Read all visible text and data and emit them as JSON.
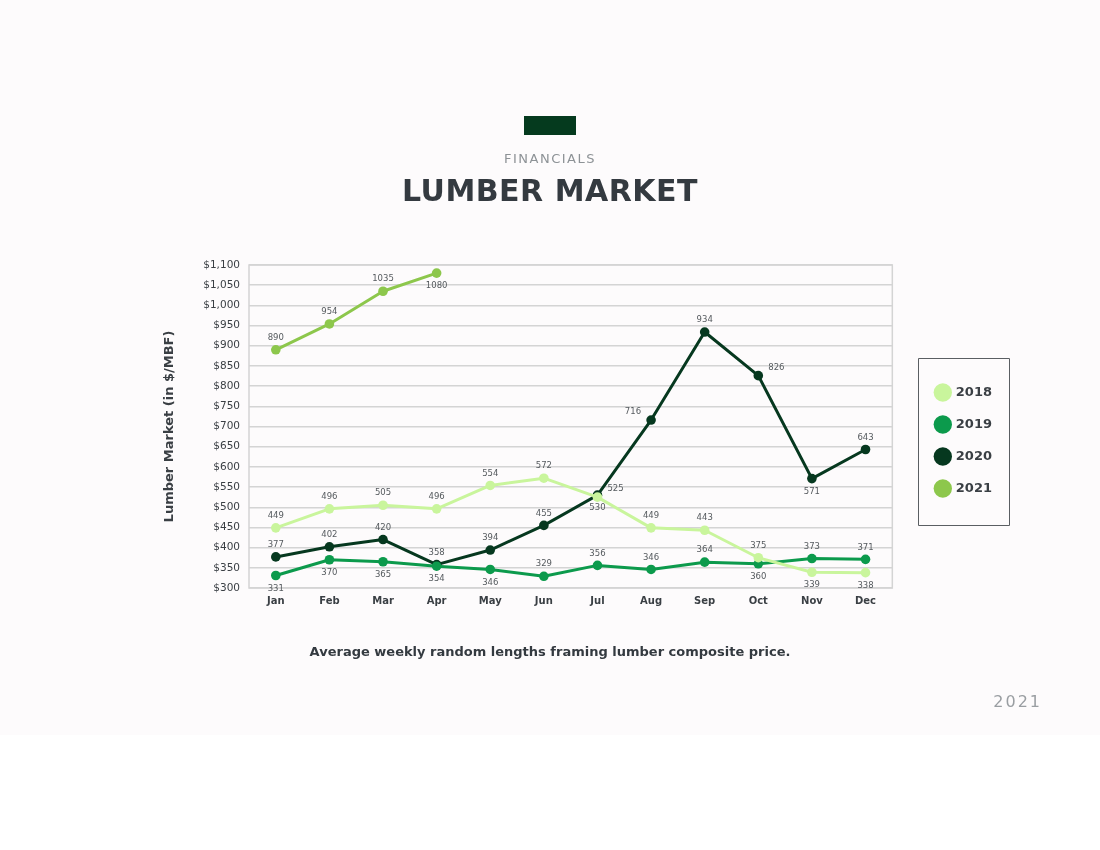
{
  "chart_data": {
    "type": "line",
    "title": "LUMBER MARKET",
    "subtitle": "FINANCIALS",
    "ylabel": "Lumber Market (in $/MBF)",
    "annotations": [
      "Average weekly random lengths framing lumber composite price.",
      "2021"
    ],
    "categories": [
      "Jan",
      "Feb",
      "Mar",
      "Apr",
      "May",
      "Jun",
      "Jul",
      "Aug",
      "Sep",
      "Oct",
      "Nov",
      "Dec"
    ],
    "series": [
      {
        "name": "2018",
        "color": "#c9f59c",
        "values": [
          449,
          496,
          505,
          496,
          554,
          572,
          525,
          449,
          443,
          375,
          339,
          338
        ]
      },
      {
        "name": "2019",
        "color": "#0c9a4c",
        "values": [
          331,
          370,
          365,
          354,
          346,
          329,
          356,
          346,
          364,
          360,
          373,
          371
        ]
      },
      {
        "name": "2020",
        "color": "#06381f",
        "values": [
          377,
          402,
          420,
          358,
          394,
          455,
          530,
          716,
          934,
          826,
          571,
          643
        ]
      },
      {
        "name": "2021",
        "color": "#8dc74c",
        "values": [
          890,
          954,
          1035,
          1080,
          null,
          null,
          null,
          null,
          null,
          null,
          null,
          null
        ]
      }
    ],
    "ylim": [
      300,
      1100
    ],
    "yticks": [
      {
        "value": 300,
        "label": "$300"
      },
      {
        "value": 350,
        "label": "$350"
      },
      {
        "value": 400,
        "label": "$400"
      },
      {
        "value": 450,
        "label": "$450"
      },
      {
        "value": 500,
        "label": "$500"
      },
      {
        "value": 550,
        "label": "$550"
      },
      {
        "value": 600,
        "label": "$600"
      },
      {
        "value": 650,
        "label": "$650"
      },
      {
        "value": 700,
        "label": "$700"
      },
      {
        "value": 750,
        "label": "$750"
      },
      {
        "value": 800,
        "label": "$800"
      },
      {
        "value": 850,
        "label": "$850"
      },
      {
        "value": 900,
        "label": "$900"
      },
      {
        "value": 950,
        "label": "$950"
      },
      {
        "value": 1000,
        "label": "$1,000"
      },
      {
        "value": 1050,
        "label": "$1,050"
      },
      {
        "value": 1100,
        "label": "$1,100"
      }
    ],
    "grid": "y",
    "legend": "right",
    "marker": "circle",
    "line_style": "solid",
    "data_labels": true
  }
}
